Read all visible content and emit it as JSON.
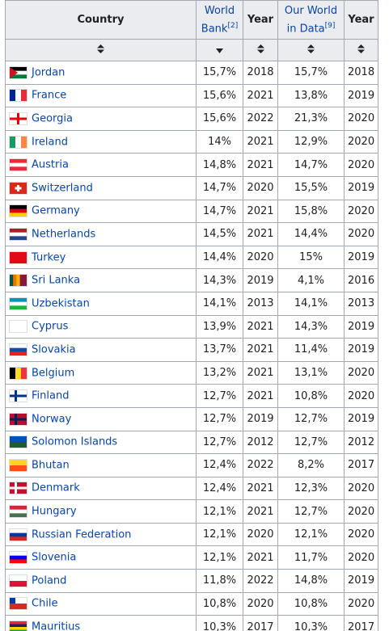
{
  "header": {
    "country": "Country",
    "world_bank": "World Bank",
    "world_bank_ref": "[2]",
    "year": "Year",
    "owid": "Our World in Data",
    "owid_ref": "[9]",
    "year2": "Year"
  },
  "table": {
    "rows": [
      [
        "Jordan",
        "15,7%",
        2018,
        "15,7%",
        2018
      ],
      [
        "France",
        "15,6%",
        2021,
        "13,8%",
        2019
      ],
      [
        "Georgia",
        "15,6%",
        2022,
        "21,3%",
        2020
      ],
      [
        "Ireland",
        "14%",
        2021,
        "12,9%",
        2020
      ],
      [
        "Austria",
        "14,8%",
        2021,
        "14,7%",
        2020
      ],
      [
        "Switzerland",
        "14,7%",
        2020,
        "15,5%",
        2019
      ],
      [
        "Germany",
        "14,7%",
        2021,
        "15,8%",
        2020
      ],
      [
        "Netherlands",
        "14,5%",
        2021,
        "14,4%",
        2020
      ],
      [
        "Turkey",
        "14,4%",
        2020,
        "15%",
        2019
      ],
      [
        "Sri Lanka",
        "14,3%",
        2019,
        "4,1%",
        2016
      ],
      [
        "Uzbekistan",
        "14,1%",
        2013,
        "14,1%",
        2013
      ],
      [
        "Cyprus",
        "13,9%",
        2021,
        "14,3%",
        2019
      ],
      [
        "Slovakia",
        "13,7%",
        2021,
        "11,4%",
        2019
      ],
      [
        "Belgium",
        "13,2%",
        2021,
        "13,1%",
        2020
      ],
      [
        "Finland",
        "12,7%",
        2021,
        "10,8%",
        2020
      ],
      [
        "Norway",
        "12,7%",
        2019,
        "12,7%",
        2019
      ],
      [
        "Solomon Islands",
        "12,7%",
        2012,
        "12,7%",
        2012
      ],
      [
        "Bhutan",
        "12,4%",
        2022,
        "8,2%",
        2017
      ],
      [
        "Denmark",
        "12,4%",
        2021,
        "12,3%",
        2020
      ],
      [
        "Hungary",
        "12,1%",
        2021,
        "12,7%",
        2020
      ],
      [
        "Russian Federation",
        "12,1%",
        2020,
        "12,1%",
        2020
      ],
      [
        "Slovenia",
        "12,1%",
        2021,
        "11,7%",
        2020
      ],
      [
        "Poland",
        "11,8%",
        2022,
        "14,8%",
        2019
      ],
      [
        "Chile",
        "10,8%",
        2020,
        "10,8%",
        2020
      ],
      [
        "Mauritius",
        "10,3%",
        2017,
        "10,3%",
        2017
      ]
    ]
  }
}
